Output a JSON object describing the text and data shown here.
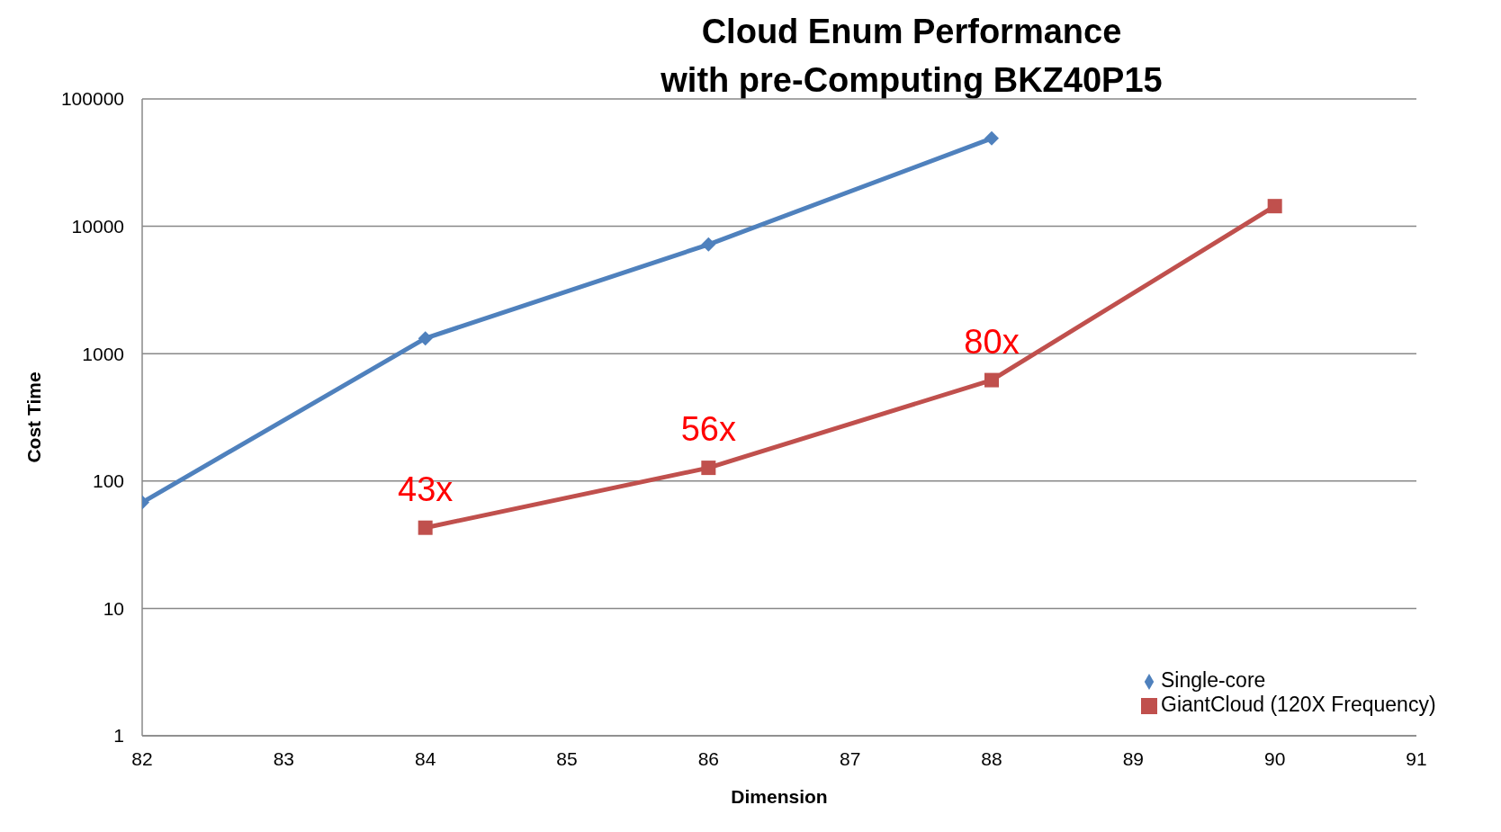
{
  "chart_data": {
    "type": "line",
    "title": "Cloud Enum Performance\nwith pre-Computing BKZ40P15",
    "xlabel": "Dimension",
    "ylabel": "Cost Time",
    "series": [
      {
        "name": "Single-core",
        "color": "#4f81bd",
        "marker": "diamond",
        "x": [
          82,
          84,
          86,
          88
        ],
        "values": [
          68,
          1320,
          7200,
          49000
        ]
      },
      {
        "name": "GiantCloud (120X Frequency)",
        "color": "#c0504d",
        "marker": "square",
        "x": [
          84,
          86,
          88,
          90
        ],
        "values": [
          43,
          127,
          620,
          14400
        ]
      }
    ],
    "annotations": [
      {
        "text": "43x",
        "x": 84,
        "y": 43
      },
      {
        "text": "56x",
        "x": 86,
        "y": 127
      },
      {
        "text": "80x",
        "x": 88,
        "y": 620
      }
    ],
    "xlim": [
      82,
      91
    ],
    "xticks": [
      82,
      83,
      84,
      85,
      86,
      87,
      88,
      89,
      90,
      91
    ],
    "ylim": [
      1,
      100000
    ],
    "yticks": [
      1,
      10,
      100,
      1000,
      10000,
      100000
    ],
    "log": "y",
    "grid": "y",
    "legend": "bottom right",
    "line_style": "solid"
  }
}
